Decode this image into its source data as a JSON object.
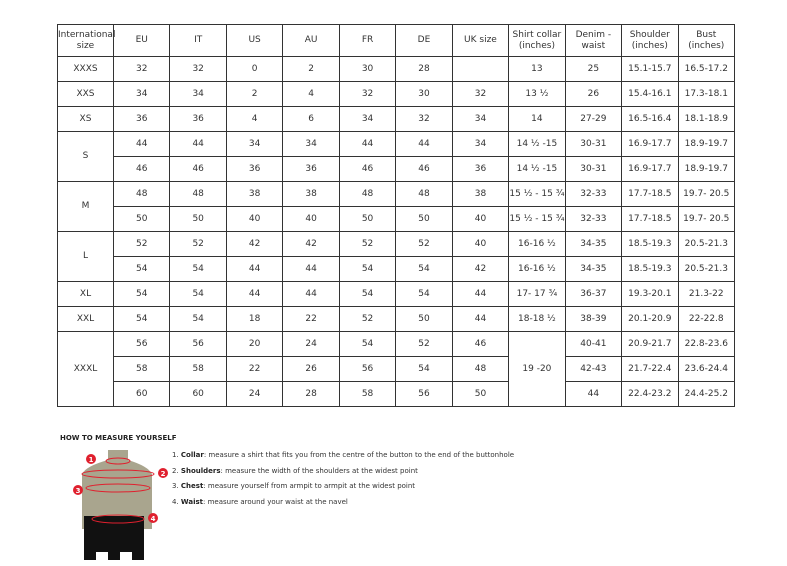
{
  "table": {
    "headers": [
      "International size",
      "EU",
      "IT",
      "US",
      "AU",
      "FR",
      "DE",
      "UK size",
      "Shirt collar (inches)",
      "Denim - waist",
      "Shoulder (inches)",
      "Bust (inches)"
    ],
    "groups": [
      {
        "size": "XXXS",
        "rows": [
          [
            "32",
            "32",
            "0",
            "2",
            "30",
            "28",
            "",
            "13",
            "25",
            "15.1-15.7",
            "16.5-17.2"
          ]
        ]
      },
      {
        "size": "XXS",
        "rows": [
          [
            "34",
            "34",
            "2",
            "4",
            "32",
            "30",
            "32",
            "13 ½",
            "26",
            "15.4-16.1",
            "17.3-18.1"
          ]
        ]
      },
      {
        "size": "XS",
        "rows": [
          [
            "36",
            "36",
            "4",
            "6",
            "34",
            "32",
            "34",
            "14",
            "27-29",
            "16.5-16.4",
            "18.1-18.9"
          ]
        ]
      },
      {
        "size": "S",
        "rows": [
          [
            "44",
            "44",
            "34",
            "34",
            "44",
            "44",
            "34",
            "14 ½ -15",
            "30-31",
            "16.9-17.7",
            "18.9-19.7"
          ],
          [
            "46",
            "46",
            "36",
            "36",
            "46",
            "46",
            "36",
            "14 ½ -15",
            "30-31",
            "16.9-17.7",
            "18.9-19.7"
          ]
        ]
      },
      {
        "size": "M",
        "rows": [
          [
            "48",
            "48",
            "38",
            "38",
            "48",
            "48",
            "38",
            "15 ½ - 15 ¾",
            "32-33",
            "17.7-18.5",
            "19.7- 20.5"
          ],
          [
            "50",
            "50",
            "40",
            "40",
            "50",
            "50",
            "40",
            "15 ½ - 15 ¾",
            "32-33",
            "17.7-18.5",
            "19.7- 20.5"
          ]
        ]
      },
      {
        "size": "L",
        "rows": [
          [
            "52",
            "52",
            "42",
            "42",
            "52",
            "52",
            "40",
            "16-16 ½",
            "34-35",
            "18.5-19.3",
            "20.5-21.3"
          ],
          [
            "54",
            "54",
            "44",
            "44",
            "54",
            "54",
            "42",
            "16-16 ½",
            "34-35",
            "18.5-19.3",
            "20.5-21.3"
          ]
        ]
      },
      {
        "size": "XL",
        "rows": [
          [
            "54",
            "54",
            "44",
            "44",
            "54",
            "54",
            "44",
            "17- 17 ¾",
            "36-37",
            "19.3-20.1",
            "21.3-22"
          ]
        ]
      },
      {
        "size": "XXL",
        "rows": [
          [
            "54",
            "54",
            "18",
            "22",
            "52",
            "50",
            "44",
            "18-18 ½",
            "38-39",
            "20.1-20.9",
            "22-22.8"
          ]
        ]
      },
      {
        "size": "XXXL",
        "collar": "19 -20",
        "rows": [
          [
            "56",
            "56",
            "20",
            "24",
            "54",
            "52",
            "46",
            "",
            "40-41",
            "20.9-21.7",
            "22.8-23.6"
          ],
          [
            "58",
            "58",
            "22",
            "26",
            "56",
            "54",
            "48",
            "",
            "42-43",
            "21.7-22.4",
            "23.6-24.4"
          ],
          [
            "60",
            "60",
            "24",
            "28",
            "58",
            "56",
            "50",
            "",
            "44",
            "22.4-23.2",
            "24.4-25.2"
          ]
        ]
      }
    ]
  },
  "measure": {
    "title": "HOW TO MEASURE YOURSELF",
    "steps": [
      {
        "num": "1.",
        "term": "Collar",
        "text": ": measure a shirt that fits you from the centre of the button to the end of the buttonhole"
      },
      {
        "num": "2.",
        "term": "Shoulders",
        "text": ": measure the width of the shoulders at the widest point"
      },
      {
        "num": "3.",
        "term": "Chest",
        "text": ": measure yourself from armpit to armpit at the widest point"
      },
      {
        "num": "4.",
        "term": "Waist",
        "text": ": measure around your waist at the navel"
      }
    ],
    "markers": [
      "1",
      "2",
      "3",
      "4"
    ],
    "accent": "#e0202e"
  }
}
